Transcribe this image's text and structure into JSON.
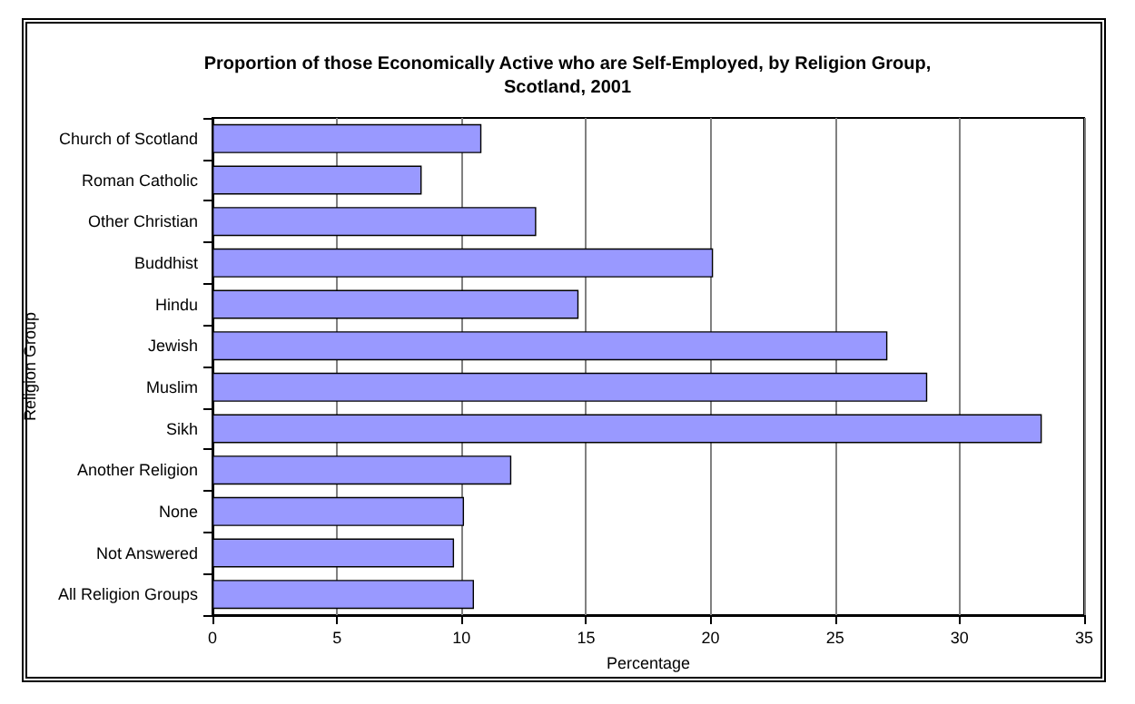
{
  "chart_data": {
    "type": "bar",
    "orientation": "horizontal",
    "title": "Proportion of those Economically Active who are Self-Employed, by Religion Group,\nScotland, 2001",
    "xlabel": "Percentage",
    "ylabel": "Religion Group",
    "categories": [
      "Church of Scotland",
      "Roman Catholic",
      "Other Christian",
      "Buddhist",
      "Hindu",
      "Jewish",
      "Muslim",
      "Sikh",
      "Another Religion",
      "None",
      "Not Answered",
      "All Religion Groups"
    ],
    "values": [
      10.8,
      8.4,
      13.0,
      20.1,
      14.7,
      27.1,
      28.7,
      33.3,
      12.0,
      10.1,
      9.7,
      10.5
    ],
    "color": "#9999ff",
    "xlim": [
      0,
      35
    ],
    "xticks": [
      0,
      5,
      10,
      15,
      20,
      25,
      30,
      35
    ],
    "grid": "x"
  }
}
